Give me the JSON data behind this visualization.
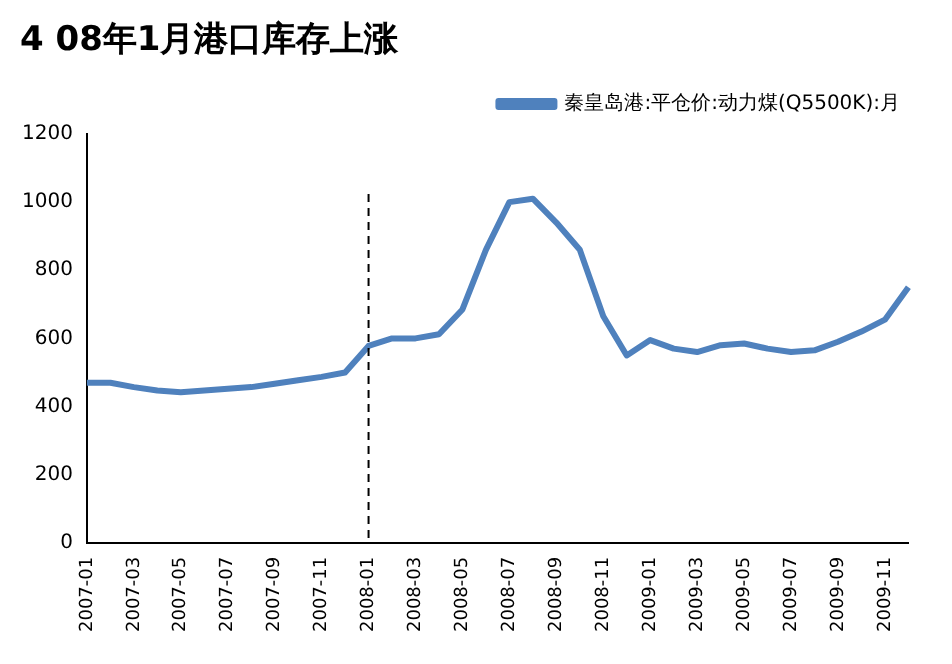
{
  "chart_data": {
    "type": "line",
    "title": "4 08年1月港口库存上涨",
    "categories": [
      "2007-01",
      null,
      "2007-03",
      null,
      "2007-05",
      null,
      "2007-07",
      null,
      "2007-09",
      null,
      "2007-11",
      null,
      "2008-01",
      null,
      "2008-03",
      null,
      "2008-05",
      null,
      "2008-07",
      null,
      "2008-09",
      null,
      "2008-11",
      null,
      "2009-01",
      null,
      "2009-03",
      null,
      "2009-05",
      null,
      "2009-07",
      null,
      "2009-09",
      null,
      "2009-11",
      null
    ],
    "series": [
      {
        "name": "秦皇岛港:平仓价:动力煤(Q5500K):月",
        "color": "#4f81bd",
        "values": [
          470,
          470,
          457,
          447,
          442,
          447,
          452,
          457,
          467,
          477,
          487,
          500,
          578,
          600,
          600,
          612,
          685,
          860,
          1000,
          1010,
          940,
          860,
          665,
          550,
          595,
          570,
          560,
          580,
          585,
          570,
          560,
          565,
          590,
          620,
          655,
          750
        ]
      }
    ],
    "ylim": [
      0,
      1200
    ],
    "yticks": [
      0,
      200,
      400,
      600,
      800,
      1000,
      1200
    ],
    "ref_lines": [
      {
        "axis": "x",
        "value": "2008-01",
        "color": "#000000",
        "line_style": "dashed"
      }
    ],
    "grid": false,
    "legend": "top right",
    "marker": "none",
    "line_style": "solid"
  }
}
